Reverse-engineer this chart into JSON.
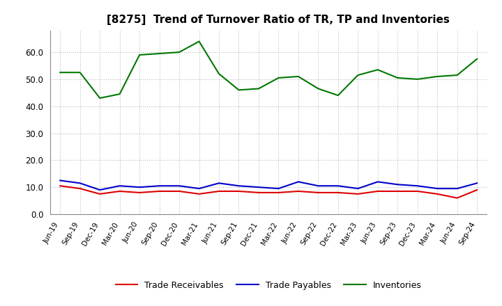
{
  "title": "[8275]  Trend of Turnover Ratio of TR, TP and Inventories",
  "x_labels": [
    "Jun-19",
    "Sep-19",
    "Dec-19",
    "Mar-20",
    "Jun-20",
    "Sep-20",
    "Dec-20",
    "Mar-21",
    "Jun-21",
    "Sep-21",
    "Dec-21",
    "Mar-22",
    "Jun-22",
    "Sep-22",
    "Dec-22",
    "Mar-23",
    "Jun-23",
    "Sep-23",
    "Dec-23",
    "Mar-24",
    "Jun-24",
    "Sep-24"
  ],
  "trade_receivables": [
    10.5,
    9.5,
    7.5,
    8.5,
    8.0,
    8.5,
    8.5,
    7.5,
    8.5,
    8.5,
    8.0,
    8.0,
    8.5,
    8.0,
    8.0,
    7.5,
    8.5,
    8.5,
    8.5,
    7.5,
    6.0,
    9.0
  ],
  "trade_payables": [
    12.5,
    11.5,
    9.0,
    10.5,
    10.0,
    10.5,
    10.5,
    9.5,
    11.5,
    10.5,
    10.0,
    9.5,
    12.0,
    10.5,
    10.5,
    9.5,
    12.0,
    11.0,
    10.5,
    9.5,
    9.5,
    11.5
  ],
  "inventories": [
    52.5,
    52.5,
    43.0,
    44.5,
    59.0,
    59.5,
    60.0,
    64.0,
    52.0,
    46.0,
    46.5,
    50.5,
    51.0,
    46.5,
    44.0,
    51.5,
    53.5,
    50.5,
    50.0,
    51.0,
    51.5,
    57.5
  ],
  "ylim": [
    0,
    68
  ],
  "yticks": [
    0.0,
    10.0,
    20.0,
    30.0,
    40.0,
    50.0,
    60.0
  ],
  "color_tr": "#dd0000",
  "color_tp": "#0000cc",
  "color_inv": "#007700",
  "background_color": "#ffffff",
  "grid_color": "#bbbbbb",
  "legend_labels": [
    "Trade Receivables",
    "Trade Payables",
    "Inventories"
  ]
}
